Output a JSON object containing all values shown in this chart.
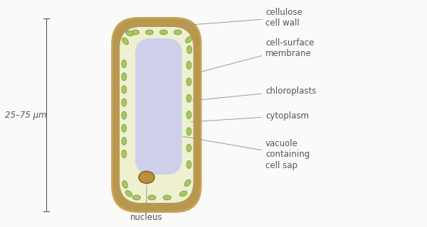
{
  "bg_color": "#fafaf8",
  "cell_wall_color": "#c8a456",
  "cytoplasm_bg_color": "#eef0d0",
  "vacuole_color": "#cdd0e8",
  "membrane_color": "#b89850",
  "chloroplast_fill": "#a8c860",
  "chloroplast_edge": "#7a9838",
  "nucleus_fill": "#b89040",
  "nucleus_edge": "#8a6820",
  "text_color": "#555555",
  "line_color": "#999999",
  "labels": {
    "cellulose_cell_wall": "cellulose\ncell wall",
    "cell_surface_membrane": "cell-surface\nmembrane",
    "chloroplasts": "chloroplasts",
    "cytoplasm": "cytoplasm",
    "vacuole": "vacuole\ncontaining\ncell sap",
    "nucleus": "nucleus",
    "size": "25–75 μm"
  },
  "fontsize": 8.5
}
